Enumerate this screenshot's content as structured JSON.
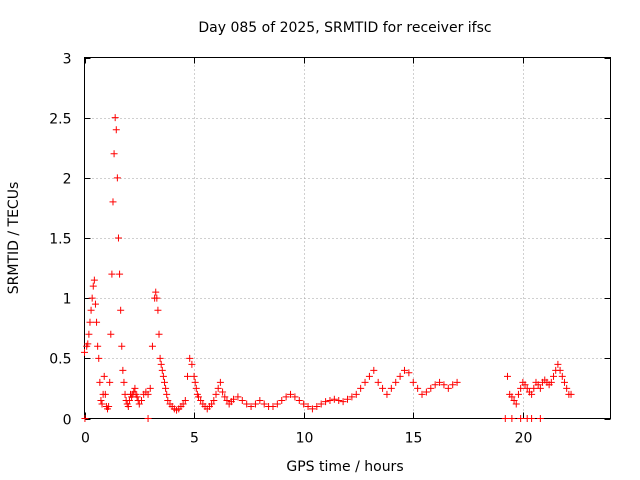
{
  "chart_data": {
    "type": "scatter",
    "title": "Day 085 of 2025, SRMTID for receiver ifsc",
    "xlabel": "GPS time / hours",
    "ylabel": "SRMTID / TECUs",
    "xlim": [
      0,
      24
    ],
    "ylim": [
      0,
      3
    ],
    "xticks": [
      0,
      5,
      10,
      15,
      20
    ],
    "xtick_labels": [
      "0",
      "5",
      "10",
      "15",
      "20"
    ],
    "yticks": [
      0,
      0.5,
      1,
      1.5,
      2,
      2.5,
      3
    ],
    "ytick_labels": [
      "0",
      "0.5",
      "1",
      "1.5",
      "2",
      "2.5",
      "3"
    ],
    "grid": true,
    "marker": "plus",
    "color": "#ff0000",
    "series": [
      {
        "name": "SRMTID",
        "x": [
          0.0,
          0.1,
          0.15,
          0.2,
          0.25,
          0.3,
          0.35,
          0.4,
          0.45,
          0.5,
          0.55,
          0.6,
          0.65,
          0.7,
          0.75,
          0.8,
          0.85,
          0.9,
          0.95,
          1.0,
          1.05,
          1.1,
          1.15,
          1.2,
          1.25,
          1.3,
          1.35,
          1.4,
          1.45,
          1.5,
          1.55,
          1.6,
          1.65,
          1.7,
          1.75,
          1.8,
          1.85,
          1.9,
          1.95,
          2.0,
          2.05,
          2.1,
          2.15,
          2.2,
          2.25,
          2.3,
          2.35,
          2.4,
          2.45,
          2.5,
          2.6,
          2.7,
          2.8,
          2.9,
          3.0,
          3.1,
          3.2,
          3.25,
          3.3,
          3.35,
          3.4,
          3.45,
          3.5,
          3.55,
          3.6,
          3.65,
          3.7,
          3.75,
          3.8,
          3.9,
          4.0,
          4.1,
          4.2,
          4.3,
          4.4,
          4.5,
          4.6,
          4.7,
          4.8,
          4.9,
          5.0,
          5.05,
          5.1,
          5.15,
          5.2,
          5.3,
          5.4,
          5.5,
          5.6,
          5.7,
          5.8,
          5.9,
          6.0,
          6.1,
          6.2,
          6.3,
          6.4,
          6.5,
          6.6,
          6.7,
          6.8,
          7.0,
          7.2,
          7.4,
          7.6,
          7.8,
          8.0,
          8.2,
          8.4,
          8.6,
          8.8,
          9.0,
          9.2,
          9.4,
          9.6,
          9.8,
          10.0,
          10.2,
          10.4,
          10.6,
          10.8,
          11.0,
          11.2,
          11.4,
          11.6,
          11.8,
          12.0,
          12.2,
          12.4,
          12.6,
          12.8,
          13.0,
          13.2,
          13.4,
          13.6,
          13.8,
          14.0,
          14.2,
          14.4,
          14.6,
          14.8,
          15.0,
          15.2,
          15.4,
          15.6,
          15.8,
          16.0,
          16.2,
          16.4,
          16.6,
          16.8,
          17.0,
          19.3,
          19.4,
          19.5,
          19.6,
          19.7,
          19.8,
          19.9,
          20.0,
          20.1,
          20.2,
          20.3,
          20.4,
          20.5,
          20.6,
          20.7,
          20.8,
          20.9,
          21.0,
          21.1,
          21.2,
          21.3,
          21.4,
          21.5,
          21.6,
          21.7,
          21.8,
          21.9,
          22.0,
          22.1,
          22.2,
          0.02,
          2.9,
          19.2,
          19.5,
          19.9,
          20.2,
          20.4,
          20.8
        ],
        "y": [
          0.55,
          0.6,
          0.62,
          0.7,
          0.8,
          0.9,
          1.0,
          1.1,
          1.15,
          0.95,
          0.8,
          0.6,
          0.5,
          0.3,
          0.15,
          0.12,
          0.2,
          0.35,
          0.2,
          0.1,
          0.08,
          0.1,
          0.3,
          0.7,
          1.2,
          1.8,
          2.2,
          2.5,
          2.4,
          2.0,
          1.5,
          1.2,
          0.9,
          0.6,
          0.4,
          0.3,
          0.2,
          0.15,
          0.12,
          0.1,
          0.15,
          0.2,
          0.18,
          0.2,
          0.22,
          0.25,
          0.2,
          0.18,
          0.15,
          0.12,
          0.15,
          0.2,
          0.22,
          0.2,
          0.25,
          0.6,
          1.0,
          1.05,
          1.0,
          0.9,
          0.7,
          0.5,
          0.45,
          0.4,
          0.35,
          0.3,
          0.25,
          0.2,
          0.15,
          0.12,
          0.1,
          0.08,
          0.07,
          0.08,
          0.1,
          0.12,
          0.15,
          0.35,
          0.5,
          0.45,
          0.35,
          0.3,
          0.25,
          0.2,
          0.18,
          0.15,
          0.12,
          0.1,
          0.08,
          0.1,
          0.12,
          0.15,
          0.2,
          0.25,
          0.3,
          0.22,
          0.18,
          0.15,
          0.12,
          0.14,
          0.16,
          0.18,
          0.15,
          0.12,
          0.1,
          0.12,
          0.15,
          0.12,
          0.1,
          0.1,
          0.12,
          0.15,
          0.18,
          0.2,
          0.18,
          0.15,
          0.12,
          0.1,
          0.08,
          0.1,
          0.12,
          0.14,
          0.15,
          0.16,
          0.15,
          0.14,
          0.16,
          0.18,
          0.2,
          0.25,
          0.3,
          0.35,
          0.4,
          0.3,
          0.25,
          0.2,
          0.25,
          0.3,
          0.35,
          0.4,
          0.38,
          0.3,
          0.25,
          0.2,
          0.22,
          0.25,
          0.28,
          0.3,
          0.28,
          0.25,
          0.28,
          0.3,
          0.35,
          0.2,
          0.18,
          0.15,
          0.12,
          0.2,
          0.25,
          0.3,
          0.28,
          0.25,
          0.22,
          0.2,
          0.25,
          0.3,
          0.28,
          0.25,
          0.3,
          0.32,
          0.3,
          0.28,
          0.3,
          0.35,
          0.4,
          0.45,
          0.4,
          0.35,
          0.3,
          0.25,
          0.2,
          0.2,
          0.0,
          0.0,
          0.0,
          0.0,
          0.0,
          0.0,
          0.0,
          0.0
        ]
      }
    ]
  }
}
